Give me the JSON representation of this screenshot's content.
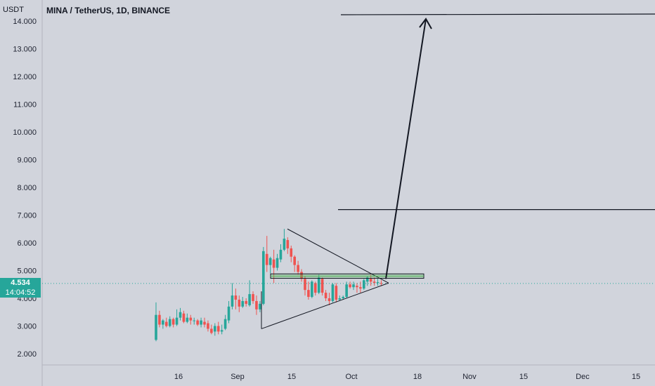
{
  "header": {
    "unit": "USDT",
    "title": "MINA / TetherUS, 1D, BINANCE"
  },
  "price_tag": {
    "price": "4.534",
    "countdown": "14:04:52"
  },
  "colors": {
    "background": "#d1d4dc",
    "up": "#26a69a",
    "down": "#ef5350",
    "drawing": "#131722",
    "box": "#4caf50",
    "price_line": "#26a69a"
  },
  "chart_data": {
    "type": "candlestick",
    "title": "MINA / TetherUS, 1D, BINANCE",
    "ylabel": "USDT",
    "y_axis": {
      "scale": "linear",
      "range": [
        1.65,
        14.1
      ],
      "ticks": [
        "14.000",
        "13.000",
        "12.000",
        "11.000",
        "10.000",
        "9.000",
        "8.000",
        "7.000",
        "6.000",
        "5.000",
        "4.000",
        "3.000",
        "2.000"
      ]
    },
    "x_axis": {
      "ticks": [
        "16",
        "Sep",
        "15",
        "Oct",
        "18",
        "Nov",
        "15",
        "Dec",
        "15"
      ]
    },
    "candles": [
      [
        2.5,
        3.4,
        2.45,
        3.85
      ],
      [
        3.4,
        3.05,
        2.95,
        3.55
      ],
      [
        3.05,
        3.2,
        2.9,
        3.25
      ],
      [
        3.15,
        3.0,
        2.95,
        3.3
      ],
      [
        3.0,
        3.25,
        2.95,
        3.35
      ],
      [
        3.25,
        3.05,
        2.95,
        3.3
      ],
      [
        3.05,
        3.3,
        3.0,
        3.6
      ],
      [
        3.3,
        3.5,
        3.2,
        3.65
      ],
      [
        3.45,
        3.15,
        3.1,
        3.55
      ],
      [
        3.15,
        3.3,
        3.1,
        3.45
      ],
      [
        3.3,
        3.2,
        3.05,
        3.4
      ],
      [
        3.2,
        3.2,
        3.05,
        3.3
      ],
      [
        3.2,
        3.05,
        3.0,
        3.25
      ],
      [
        3.05,
        3.2,
        2.95,
        3.3
      ],
      [
        3.15,
        3.05,
        2.95,
        3.3
      ],
      [
        3.1,
        2.9,
        2.8,
        3.2
      ],
      [
        2.9,
        2.75,
        2.7,
        3.05
      ],
      [
        2.8,
        3.0,
        2.65,
        3.1
      ],
      [
        3.0,
        2.8,
        2.7,
        3.15
      ],
      [
        2.8,
        2.85,
        2.7,
        3.05
      ],
      [
        2.9,
        3.25,
        2.85,
        3.4
      ],
      [
        3.2,
        3.7,
        3.1,
        3.9
      ],
      [
        3.7,
        4.1,
        3.6,
        4.55
      ],
      [
        4.1,
        3.95,
        3.6,
        4.35
      ],
      [
        3.95,
        3.7,
        3.5,
        4.1
      ],
      [
        3.7,
        3.9,
        3.65,
        4.05
      ],
      [
        3.9,
        3.8,
        3.7,
        4.0
      ],
      [
        3.75,
        4.15,
        3.7,
        4.65
      ],
      [
        4.15,
        3.9,
        3.8,
        4.25
      ],
      [
        3.9,
        3.6,
        3.4,
        4.1
      ],
      [
        3.6,
        3.8,
        3.5,
        3.9
      ],
      [
        3.8,
        5.7,
        3.75,
        5.85
      ],
      [
        5.6,
        5.2,
        4.95,
        6.25
      ],
      [
        5.2,
        5.45,
        4.9,
        5.5
      ],
      [
        5.4,
        5.1,
        4.55,
        5.75
      ],
      [
        5.1,
        5.45,
        5.0,
        5.6
      ],
      [
        5.4,
        5.75,
        5.3,
        5.95
      ],
      [
        5.75,
        6.15,
        5.7,
        6.5
      ],
      [
        6.1,
        5.8,
        5.6,
        6.2
      ],
      [
        5.8,
        5.5,
        5.3,
        5.9
      ],
      [
        5.5,
        5.2,
        4.95,
        5.55
      ],
      [
        5.2,
        4.95,
        4.85,
        5.35
      ],
      [
        4.95,
        4.7,
        4.6,
        5.05
      ],
      [
        4.7,
        4.3,
        4.1,
        4.8
      ],
      [
        4.3,
        4.05,
        3.95,
        4.6
      ],
      [
        4.05,
        4.6,
        4.0,
        4.65
      ],
      [
        4.55,
        4.2,
        4.1,
        4.6
      ],
      [
        4.2,
        4.75,
        4.15,
        4.85
      ],
      [
        4.7,
        4.2,
        4.1,
        4.75
      ],
      [
        4.2,
        4.0,
        3.9,
        4.3
      ],
      [
        4.0,
        3.9,
        3.75,
        4.2
      ],
      [
        3.9,
        4.5,
        3.85,
        4.55
      ],
      [
        4.45,
        3.95,
        3.85,
        4.55
      ],
      [
        3.95,
        4.0,
        3.9,
        4.1
      ],
      [
        4.0,
        4.05,
        3.95,
        4.1
      ],
      [
        4.05,
        4.5,
        4.0,
        4.6
      ],
      [
        4.5,
        4.4,
        4.35,
        4.6
      ],
      [
        4.4,
        4.5,
        4.3,
        4.6
      ],
      [
        4.45,
        4.4,
        4.2,
        4.55
      ],
      [
        4.4,
        4.35,
        4.2,
        4.6
      ],
      [
        4.35,
        4.65,
        4.3,
        4.7
      ],
      [
        4.6,
        4.75,
        4.45,
        4.8
      ],
      [
        4.7,
        4.6,
        4.45,
        4.85
      ],
      [
        4.6,
        4.55,
        4.45,
        4.75
      ],
      [
        4.55,
        4.58,
        4.45,
        4.7
      ],
      [
        4.55,
        4.53,
        4.45,
        4.65
      ]
    ],
    "annotations": {
      "symmetrical_triangle": {
        "apex": [
          4.55
        ],
        "upper_start": 6.5,
        "lower_start": 2.9
      },
      "breakout_box": {
        "top": 4.88,
        "bottom": 4.72
      },
      "horizontal_levels": [
        7.2,
        14.2
      ],
      "projection_arrow": {
        "from": 4.7,
        "to": 13.9
      },
      "current_price": 4.534
    }
  }
}
